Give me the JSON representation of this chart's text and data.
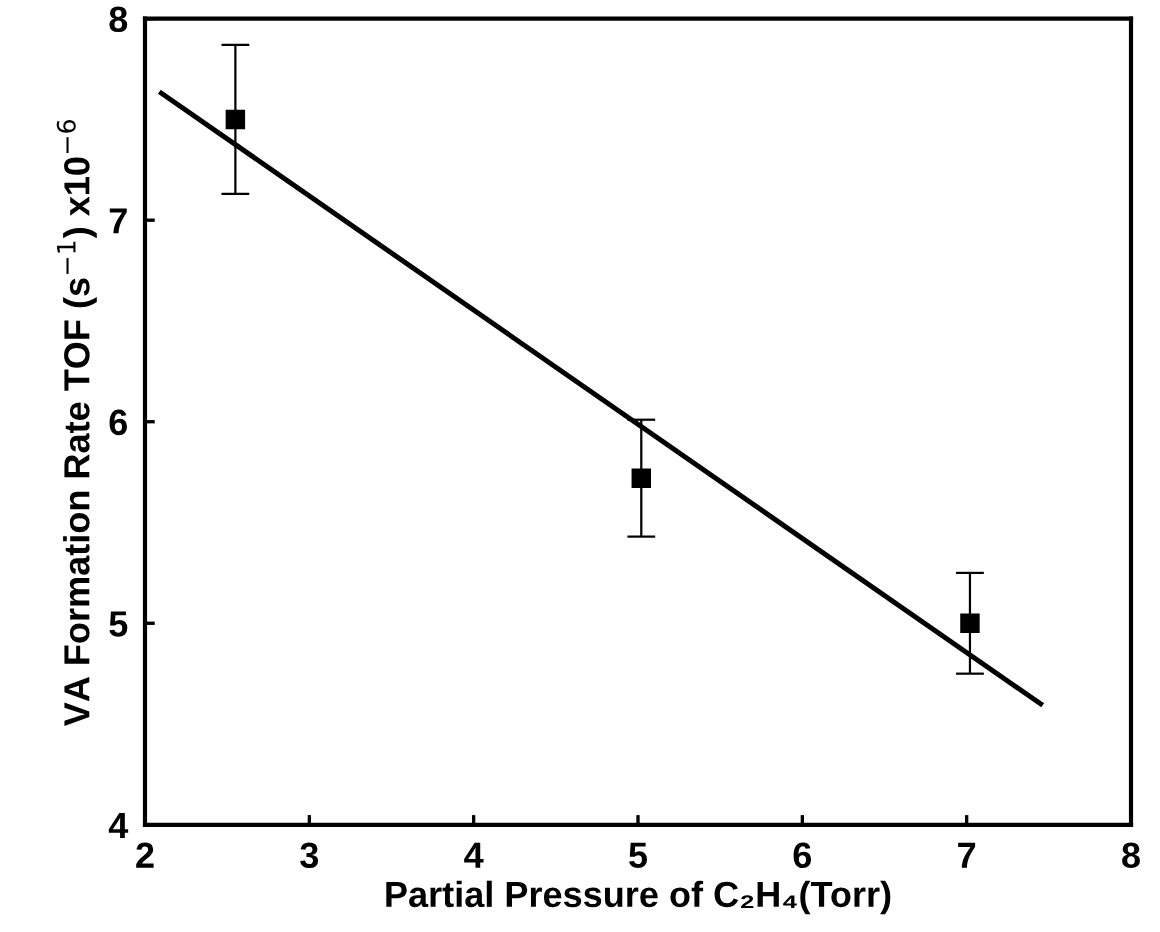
{
  "chart_data": {
    "type": "scatter",
    "xlabel": "Partial Pressure of C₂H₄(Torr)",
    "ylabel": "VA Formation Rate TOF (s$^{−1}$) x10$^{−6}$",
    "xlim": [
      2,
      8
    ],
    "ylim": [
      4,
      8
    ],
    "xticks": [
      2,
      3,
      4,
      5,
      6,
      7,
      8
    ],
    "yticks": [
      4,
      5,
      6,
      7,
      8
    ],
    "grid": false,
    "legend": false,
    "series": [
      {
        "color": "#000000",
        "marker": "square",
        "x": [
          2.55,
          5.02,
          7.02
        ],
        "values": [
          7.5,
          5.72,
          5.0
        ],
        "errors": [
          0.37,
          0.29,
          0.25
        ]
      },
      {
        "type": "line",
        "color": "#000000",
        "marker": "none",
        "line_style": "solid",
        "x": [
          2.1,
          7.45
        ],
        "values": [
          7.63,
          4.6
        ]
      }
    ]
  }
}
